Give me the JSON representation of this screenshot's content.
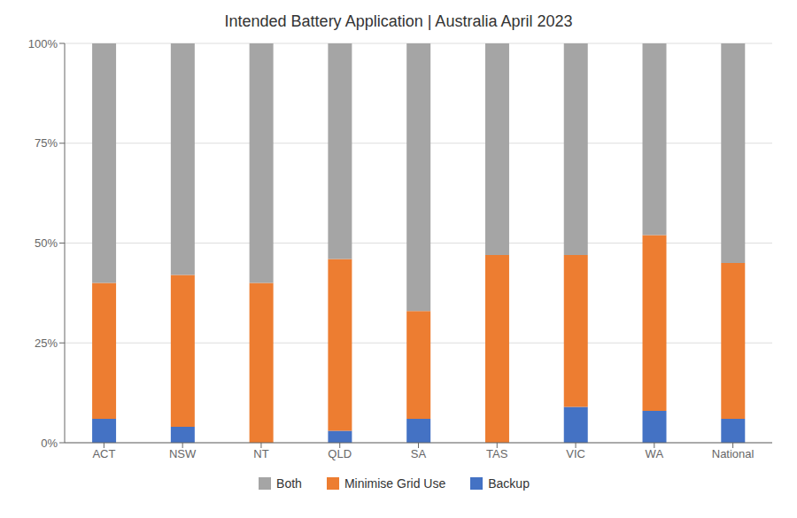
{
  "chart_data": {
    "type": "bar",
    "title": "Intended Battery Application | Australia April 2023",
    "categories": [
      "ACT",
      "NSW",
      "NT",
      "QLD",
      "SA",
      "TAS",
      "VIC",
      "WA",
      "National"
    ],
    "series": [
      {
        "name": "Backup",
        "color": "#4472C4",
        "values": [
          0.06,
          0.04,
          0.0,
          0.03,
          0.06,
          0.0,
          0.09,
          0.08,
          0.06
        ]
      },
      {
        "name": "Minimise Grid Use",
        "color": "#ED7D31",
        "values": [
          0.34,
          0.38,
          0.4,
          0.43,
          0.27,
          0.47,
          0.38,
          0.44,
          0.39
        ]
      },
      {
        "name": "Both",
        "color": "#A5A5A5",
        "values": [
          0.6,
          0.58,
          0.6,
          0.54,
          0.67,
          0.53,
          0.53,
          0.48,
          0.55
        ]
      }
    ],
    "stacked": true,
    "ylim": [
      0,
      1.0
    ],
    "yticks": [
      {
        "value": 0,
        "label": "0%"
      },
      {
        "value": 0.25,
        "label": "25%"
      },
      {
        "value": 0.5,
        "label": "50%"
      },
      {
        "value": 0.75,
        "label": "75%"
      },
      {
        "value": 1.0,
        "label": "100%"
      }
    ],
    "grid": true,
    "legend": "bottom"
  }
}
